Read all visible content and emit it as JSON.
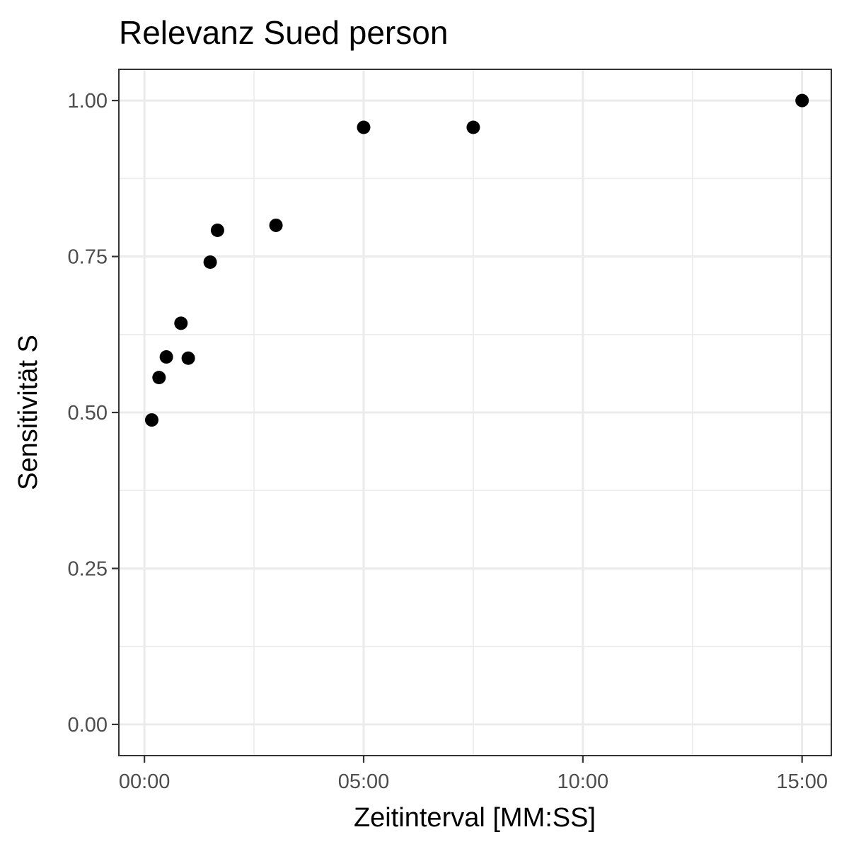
{
  "chart_data": {
    "type": "scatter",
    "title": "Relevanz Sued person",
    "xlabel": "Zeitinterval [MM:SS]",
    "ylabel": "Sensitivität S",
    "x_unit": "seconds",
    "xlim": [
      -35,
      940
    ],
    "ylim": [
      -0.05,
      1.05
    ],
    "x_ticks": [
      0,
      300,
      600,
      900
    ],
    "x_tick_labels": [
      "00:00",
      "05:00",
      "10:00",
      "15:00"
    ],
    "y_ticks": [
      0,
      0.25,
      0.5,
      0.75,
      1.0
    ],
    "y_tick_labels": [
      "0.00",
      "0.25",
      "0.50",
      "0.75",
      "1.00"
    ],
    "grid": true,
    "legend": "none",
    "point_color": "#000000",
    "points": [
      {
        "x": 10,
        "y": 0.488
      },
      {
        "x": 20,
        "y": 0.556
      },
      {
        "x": 30,
        "y": 0.589
      },
      {
        "x": 50,
        "y": 0.643
      },
      {
        "x": 60,
        "y": 0.587
      },
      {
        "x": 90,
        "y": 0.741
      },
      {
        "x": 100,
        "y": 0.792
      },
      {
        "x": 180,
        "y": 0.8
      },
      {
        "x": 300,
        "y": 0.957
      },
      {
        "x": 450,
        "y": 0.957
      },
      {
        "x": 900,
        "y": 1.0
      }
    ]
  }
}
